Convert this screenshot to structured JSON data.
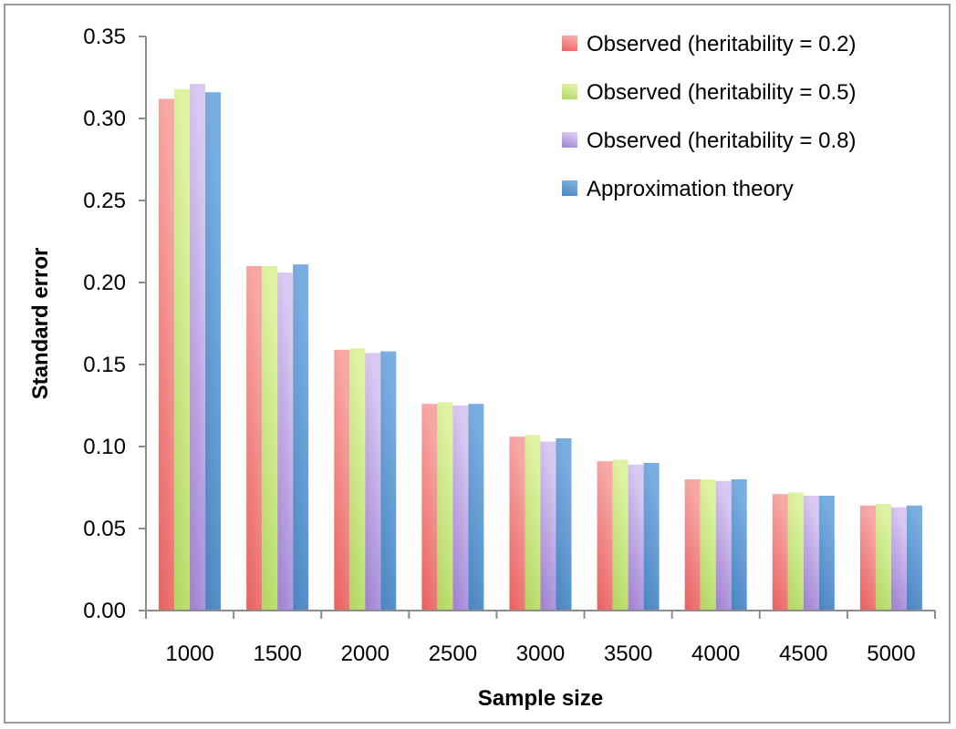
{
  "chart_data": {
    "type": "bar",
    "title": "",
    "xlabel": "Sample size",
    "ylabel": "Standard error",
    "categories": [
      "1000",
      "1500",
      "2000",
      "2500",
      "3000",
      "3500",
      "4000",
      "4500",
      "5000"
    ],
    "ylim": [
      0,
      0.35
    ],
    "yticks": [
      "0.00",
      "0.05",
      "0.10",
      "0.15",
      "0.20",
      "0.25",
      "0.30",
      "0.35"
    ],
    "grid": false,
    "legend_position": "top-right",
    "series": [
      {
        "name": "Observed (heritability = 0.2)",
        "color": "#e8605f",
        "light": "#f7a8a6",
        "values": [
          0.312,
          0.21,
          0.159,
          0.126,
          0.106,
          0.091,
          0.08,
          0.071,
          0.064
        ]
      },
      {
        "name": "Observed (heritability = 0.5)",
        "color": "#b0d660",
        "light": "#def3a2",
        "values": [
          0.318,
          0.21,
          0.16,
          0.127,
          0.107,
          0.092,
          0.08,
          0.072,
          0.065
        ]
      },
      {
        "name": "Observed (heritability = 0.8)",
        "color": "#9d7fd0",
        "light": "#d9c8f2",
        "values": [
          0.321,
          0.206,
          0.157,
          0.125,
          0.103,
          0.089,
          0.079,
          0.07,
          0.063
        ]
      },
      {
        "name": "Approximation theory",
        "color": "#4a84c0",
        "light": "#79aee0",
        "values": [
          0.316,
          0.211,
          0.158,
          0.126,
          0.105,
          0.09,
          0.08,
          0.07,
          0.064
        ]
      }
    ]
  }
}
